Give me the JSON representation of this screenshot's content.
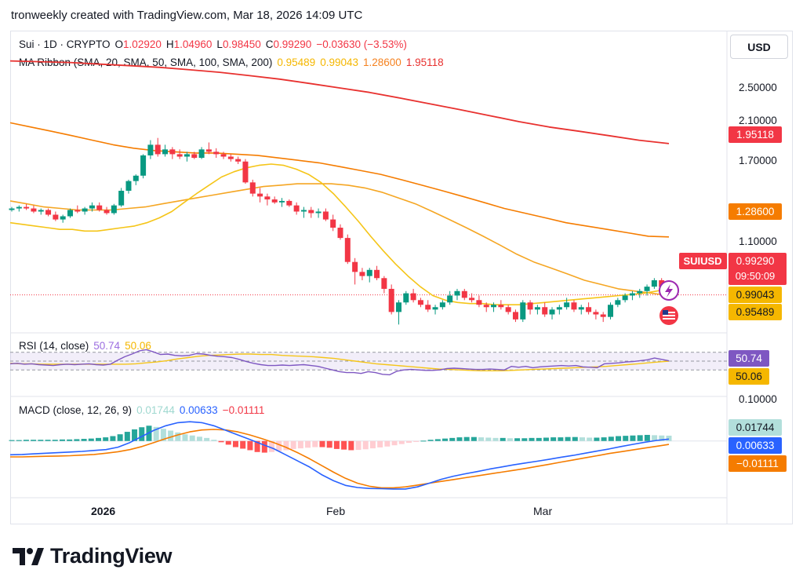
{
  "header": {
    "text": "tronweekly created with TradingView.com, Mar 18, 2026 14:09 UTC"
  },
  "currency_button": "USD",
  "symbol_legend": {
    "title": "Sui · 1D · CRYPTO",
    "open_label": "O",
    "open": "1.02920",
    "high_label": "H",
    "high": "1.04960",
    "low_label": "L",
    "low": "0.98450",
    "close_label": "C",
    "close": "0.99290",
    "change": "−0.03630 (−3.53%)"
  },
  "ma_legend": {
    "title": "MA Ribbon (SMA, 20, SMA, 50, SMA, 100, SMA, 200)",
    "v20": "0.95489",
    "v50": "0.99043",
    "v100": "1.28600",
    "v200": "1.95118"
  },
  "rsi_legend": {
    "title": "RSI (14, close)",
    "rsi": "50.74",
    "ma": "50.06"
  },
  "macd_legend": {
    "title": "MACD (close, 12, 26, 9)",
    "hist": "0.01744",
    "macd": "0.00633",
    "signal": "−0.01111"
  },
  "symbol_tag": "SUIUSD",
  "countdown": "09:50:09",
  "price_axis_labels": [
    "2.50000",
    "2.10000",
    "1.70000",
    "1.10000"
  ],
  "macd_axis_label": "0.10000",
  "price_badges": [
    {
      "text": "1.95118",
      "color": "#f23645"
    },
    {
      "text": "1.28600",
      "color": "#f57c00"
    },
    {
      "text": "0.99290",
      "color": "#f23645"
    },
    {
      "text": "0.99043",
      "color": "#f5b700"
    },
    {
      "text": "0.95489",
      "color": "#f5b700"
    }
  ],
  "rsi_badges": [
    {
      "text": "50.74",
      "color": "#7e57c2"
    },
    {
      "text": "50.06",
      "color": "#f5b700"
    }
  ],
  "macd_badges": [
    {
      "text": "0.01744",
      "color": "#b2dfdb"
    },
    {
      "text": "0.00633",
      "color": "#2962ff"
    },
    {
      "text": "−0.01111",
      "color": "#f57c00"
    }
  ],
  "logo_text": "TradingView",
  "chart_data": {
    "type": "candlestick",
    "x_ticks": [
      "2026",
      "Feb",
      "Mar"
    ],
    "price_axis": {
      "min": 0.85,
      "max": 2.7,
      "scale": "log"
    },
    "candles": [
      [
        1.45,
        1.47,
        1.44,
        1.46
      ],
      [
        1.46,
        1.48,
        1.44,
        1.47
      ],
      [
        1.47,
        1.49,
        1.45,
        1.46
      ],
      [
        1.46,
        1.48,
        1.43,
        1.44
      ],
      [
        1.44,
        1.46,
        1.42,
        1.45
      ],
      [
        1.45,
        1.46,
        1.41,
        1.42
      ],
      [
        1.42,
        1.44,
        1.38,
        1.39
      ],
      [
        1.39,
        1.42,
        1.37,
        1.41
      ],
      [
        1.41,
        1.46,
        1.4,
        1.45
      ],
      [
        1.45,
        1.48,
        1.43,
        1.44
      ],
      [
        1.44,
        1.47,
        1.42,
        1.46
      ],
      [
        1.46,
        1.5,
        1.44,
        1.48
      ],
      [
        1.48,
        1.5,
        1.44,
        1.45
      ],
      [
        1.45,
        1.47,
        1.42,
        1.43
      ],
      [
        1.43,
        1.49,
        1.42,
        1.48
      ],
      [
        1.48,
        1.6,
        1.47,
        1.58
      ],
      [
        1.58,
        1.66,
        1.56,
        1.65
      ],
      [
        1.65,
        1.7,
        1.62,
        1.69
      ],
      [
        1.69,
        1.86,
        1.67,
        1.85
      ],
      [
        1.85,
        1.98,
        1.82,
        1.94
      ],
      [
        1.94,
        2.0,
        1.84,
        1.86
      ],
      [
        1.86,
        1.94,
        1.84,
        1.9
      ],
      [
        1.9,
        1.92,
        1.82,
        1.86
      ],
      [
        1.86,
        1.9,
        1.82,
        1.84
      ],
      [
        1.84,
        1.88,
        1.8,
        1.86
      ],
      [
        1.86,
        1.88,
        1.82,
        1.83
      ],
      [
        1.83,
        1.92,
        1.82,
        1.9
      ],
      [
        1.9,
        1.96,
        1.86,
        1.88
      ],
      [
        1.88,
        1.91,
        1.83,
        1.86
      ],
      [
        1.86,
        1.88,
        1.82,
        1.84
      ],
      [
        1.84,
        1.86,
        1.8,
        1.82
      ],
      [
        1.82,
        1.84,
        1.78,
        1.8
      ],
      [
        1.8,
        1.82,
        1.63,
        1.64
      ],
      [
        1.64,
        1.66,
        1.54,
        1.56
      ],
      [
        1.56,
        1.6,
        1.5,
        1.54
      ],
      [
        1.54,
        1.56,
        1.48,
        1.52
      ],
      [
        1.52,
        1.54,
        1.49,
        1.5
      ],
      [
        1.5,
        1.53,
        1.47,
        1.51
      ],
      [
        1.51,
        1.52,
        1.47,
        1.48
      ],
      [
        1.48,
        1.5,
        1.42,
        1.44
      ],
      [
        1.44,
        1.47,
        1.4,
        1.45
      ],
      [
        1.45,
        1.47,
        1.4,
        1.43
      ],
      [
        1.43,
        1.46,
        1.4,
        1.44
      ],
      [
        1.44,
        1.46,
        1.38,
        1.39
      ],
      [
        1.39,
        1.42,
        1.32,
        1.34
      ],
      [
        1.34,
        1.36,
        1.27,
        1.28
      ],
      [
        1.28,
        1.3,
        1.14,
        1.15
      ],
      [
        1.15,
        1.17,
        1.04,
        1.1
      ],
      [
        1.1,
        1.12,
        1.06,
        1.08
      ],
      [
        1.08,
        1.12,
        1.05,
        1.11
      ],
      [
        1.11,
        1.13,
        1.06,
        1.07
      ],
      [
        1.07,
        1.08,
        1.0,
        1.02
      ],
      [
        1.02,
        1.04,
        0.91,
        0.92
      ],
      [
        0.92,
        0.97,
        0.87,
        0.96
      ],
      [
        0.96,
        1.01,
        0.95,
        1.0
      ],
      [
        1.0,
        1.02,
        0.96,
        0.97
      ],
      [
        0.97,
        0.98,
        0.94,
        0.95
      ],
      [
        0.95,
        0.97,
        0.92,
        0.93
      ],
      [
        0.93,
        0.95,
        0.91,
        0.94
      ],
      [
        0.94,
        0.97,
        0.93,
        0.96
      ],
      [
        0.96,
        1.01,
        0.95,
        0.99
      ],
      [
        0.99,
        1.02,
        0.97,
        1.01
      ],
      [
        1.01,
        1.02,
        0.97,
        0.98
      ],
      [
        0.98,
        1.0,
        0.96,
        0.97
      ],
      [
        0.97,
        0.99,
        0.94,
        0.95
      ],
      [
        0.95,
        0.96,
        0.92,
        0.94
      ],
      [
        0.94,
        0.96,
        0.92,
        0.95
      ],
      [
        0.95,
        0.97,
        0.93,
        0.94
      ],
      [
        0.94,
        0.95,
        0.91,
        0.92
      ],
      [
        0.92,
        0.93,
        0.88,
        0.89
      ],
      [
        0.89,
        0.97,
        0.88,
        0.96
      ],
      [
        0.96,
        0.97,
        0.91,
        0.93
      ],
      [
        0.93,
        0.95,
        0.91,
        0.94
      ],
      [
        0.94,
        0.96,
        0.9,
        0.91
      ],
      [
        0.91,
        0.94,
        0.89,
        0.93
      ],
      [
        0.93,
        0.95,
        0.91,
        0.94
      ],
      [
        0.94,
        0.98,
        0.93,
        0.96
      ],
      [
        0.96,
        0.97,
        0.92,
        0.93
      ],
      [
        0.93,
        0.95,
        0.91,
        0.94
      ],
      [
        0.94,
        0.96,
        0.91,
        0.92
      ],
      [
        0.92,
        0.93,
        0.89,
        0.91
      ],
      [
        0.91,
        0.92,
        0.88,
        0.9
      ],
      [
        0.9,
        0.96,
        0.89,
        0.95
      ],
      [
        0.95,
        0.98,
        0.94,
        0.97
      ],
      [
        0.97,
        1.0,
        0.96,
        0.99
      ],
      [
        0.99,
        1.01,
        0.97,
        1.0
      ],
      [
        1.0,
        1.02,
        0.98,
        1.01
      ],
      [
        1.01,
        1.04,
        0.99,
        1.03
      ],
      [
        1.03,
        1.07,
        1.02,
        1.06
      ],
      [
        1.06,
        1.07,
        1.02,
        1.029
      ],
      [
        1.029,
        1.0496,
        0.9845,
        0.9929
      ]
    ],
    "sma20": [
      1.37,
      1.36,
      1.35,
      1.34,
      1.33,
      1.33,
      1.32,
      1.32,
      1.33,
      1.34,
      1.35,
      1.37,
      1.4,
      1.44,
      1.5,
      1.56,
      1.62,
      1.68,
      1.72,
      1.75,
      1.77,
      1.78,
      1.77,
      1.74,
      1.7,
      1.64,
      1.56,
      1.47,
      1.38,
      1.29,
      1.21,
      1.14,
      1.08,
      1.03,
      0.99,
      0.97,
      0.96,
      0.955,
      0.955,
      0.95,
      0.95,
      0.95,
      0.955,
      0.96,
      0.965,
      0.97,
      0.975,
      0.98,
      0.985,
      0.99,
      0.995,
      1.0,
      1.01,
      1.02
    ],
    "sma50": [
      1.51,
      1.49,
      1.47,
      1.46,
      1.45,
      1.45,
      1.45,
      1.46,
      1.47,
      1.49,
      1.51,
      1.53,
      1.55,
      1.57,
      1.59,
      1.61,
      1.62,
      1.63,
      1.63,
      1.63,
      1.62,
      1.6,
      1.57,
      1.53,
      1.49,
      1.44,
      1.39,
      1.34,
      1.29,
      1.24,
      1.19,
      1.15,
      1.12,
      1.09,
      1.06,
      1.04,
      1.02,
      1.01,
      1.0,
      0.99
    ],
    "sma100": [
      2.14,
      2.1,
      2.06,
      2.02,
      1.98,
      1.94,
      1.91,
      1.89,
      1.88,
      1.87,
      1.87,
      1.86,
      1.85,
      1.83,
      1.81,
      1.79,
      1.76,
      1.73,
      1.7,
      1.66,
      1.62,
      1.58,
      1.54,
      1.5,
      1.46,
      1.43,
      1.4,
      1.37,
      1.35,
      1.33,
      1.31,
      1.29,
      1.286
    ],
    "sma200": [
      2.82,
      2.81,
      2.8,
      2.78,
      2.76,
      2.74,
      2.71,
      2.68,
      2.64,
      2.6,
      2.55,
      2.5,
      2.45,
      2.39,
      2.33,
      2.27,
      2.21,
      2.15,
      2.1,
      2.06,
      2.02,
      1.98,
      1.95
    ],
    "rsi_axis": {
      "min": 0,
      "max": 100
    },
    "rsi": [
      44,
      45,
      43,
      44,
      42,
      41,
      40,
      42,
      43,
      42,
      43,
      44,
      42,
      41,
      43,
      52,
      60,
      66,
      73,
      76,
      71,
      65,
      66,
      63,
      62,
      63,
      67,
      66,
      63,
      61,
      60,
      58,
      54,
      49,
      45,
      42,
      40,
      40,
      41,
      40,
      41,
      42,
      40,
      38,
      34,
      30,
      26,
      24,
      24,
      22,
      26,
      24,
      20,
      19,
      27,
      30,
      31,
      30,
      29,
      29,
      30,
      33,
      34,
      33,
      32,
      31,
      31,
      32,
      31,
      30,
      38,
      36,
      38,
      35,
      37,
      38,
      39,
      40,
      39,
      40,
      37,
      36,
      35,
      44,
      45,
      46,
      48,
      49,
      51,
      53,
      57,
      54,
      50.74
    ],
    "rsi_ma": [
      45,
      44,
      44,
      43,
      43,
      43,
      43,
      43,
      43,
      43,
      43,
      43,
      44,
      46,
      48,
      51,
      55,
      58,
      61,
      63,
      64,
      65,
      66,
      66,
      65,
      65,
      63,
      62,
      61,
      60,
      58,
      56,
      53,
      50,
      47,
      44,
      42,
      40,
      38,
      36,
      34,
      32,
      31,
      30,
      29,
      28,
      28,
      28,
      29,
      30,
      31,
      32,
      33,
      34,
      35,
      36,
      37,
      38,
      40,
      42,
      44,
      46,
      48,
      50.06
    ],
    "macd_axis": {
      "min": -0.17,
      "max": 0.12
    },
    "histogram": [
      0.003,
      0.003,
      0.004,
      0.004,
      0.004,
      0.004,
      0.004,
      0.005,
      0.005,
      0.006,
      0.007,
      0.008,
      0.01,
      0.012,
      0.016,
      0.022,
      0.03,
      0.038,
      0.045,
      0.05,
      0.046,
      0.04,
      0.034,
      0.028,
      0.022,
      0.018,
      0.014,
      0.01,
      0.004,
      -0.004,
      -0.012,
      -0.02,
      -0.025,
      -0.03,
      -0.036,
      -0.038,
      -0.036,
      -0.033,
      -0.03,
      -0.026,
      -0.024,
      -0.022,
      -0.02,
      -0.02,
      -0.022,
      -0.026,
      -0.028,
      -0.03,
      -0.029,
      -0.027,
      -0.024,
      -0.021,
      -0.018,
      -0.014,
      -0.01,
      -0.006,
      -0.003,
      0.001,
      0.004,
      0.006,
      0.008,
      0.01,
      0.012,
      0.013,
      0.013,
      0.012,
      0.011,
      0.01,
      0.01,
      0.009,
      0.009,
      0.009,
      0.01,
      0.01,
      0.011,
      0.012,
      0.012,
      0.013,
      0.013,
      0.012,
      0.011,
      0.011,
      0.012,
      0.014,
      0.016,
      0.017,
      0.018,
      0.019,
      0.02,
      0.019,
      0.018,
      0.01744
    ],
    "macd": [
      -0.045,
      -0.044,
      -0.042,
      -0.04,
      -0.038,
      -0.036,
      -0.034,
      -0.031,
      -0.028,
      -0.02,
      -0.005,
      0.015,
      0.035,
      0.05,
      0.06,
      0.063,
      0.06,
      0.05,
      0.035,
      0.02,
      0.005,
      -0.01,
      -0.025,
      -0.045,
      -0.065,
      -0.085,
      -0.11,
      -0.13,
      -0.145,
      -0.152,
      -0.155,
      -0.156,
      -0.157,
      -0.157,
      -0.15,
      -0.138,
      -0.125,
      -0.115,
      -0.107,
      -0.1,
      -0.092,
      -0.085,
      -0.078,
      -0.072,
      -0.066,
      -0.06,
      -0.053,
      -0.047,
      -0.04,
      -0.033,
      -0.026,
      -0.018,
      -0.011,
      -0.004,
      0.002,
      0.00633
    ],
    "signal": [
      -0.052,
      -0.052,
      -0.051,
      -0.05,
      -0.049,
      -0.048,
      -0.046,
      -0.044,
      -0.04,
      -0.035,
      -0.028,
      -0.018,
      -0.005,
      0.008,
      0.02,
      0.03,
      0.036,
      0.038,
      0.036,
      0.03,
      0.02,
      0.008,
      -0.005,
      -0.02,
      -0.038,
      -0.058,
      -0.08,
      -0.102,
      -0.122,
      -0.138,
      -0.148,
      -0.153,
      -0.153,
      -0.15,
      -0.144,
      -0.138,
      -0.132,
      -0.126,
      -0.12,
      -0.114,
      -0.108,
      -0.102,
      -0.096,
      -0.09,
      -0.083,
      -0.076,
      -0.069,
      -0.062,
      -0.055,
      -0.048,
      -0.041,
      -0.035,
      -0.029,
      -0.023,
      -0.017,
      -0.01111
    ]
  }
}
